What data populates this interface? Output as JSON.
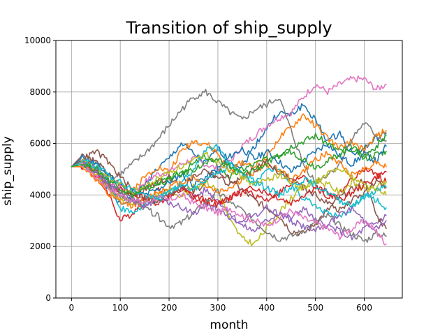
{
  "chart_data": {
    "type": "line",
    "title": "Transition of ship_supply",
    "xlabel": "month",
    "ylabel": "ship_supply",
    "xlim": [
      -32,
      678
    ],
    "ylim": [
      0,
      10000
    ],
    "x_ticks": [
      0,
      100,
      200,
      300,
      400,
      500,
      600
    ],
    "y_ticks": [
      0,
      2000,
      4000,
      6000,
      8000,
      10000
    ],
    "grid": true,
    "legend": "none",
    "series": [
      {
        "color": "#1f77b4",
        "x": [
          0,
          25,
          50,
          75,
          100,
          125,
          150,
          175,
          200,
          225,
          250,
          275,
          300,
          325,
          350,
          375,
          400,
          425,
          450,
          475,
          500,
          525,
          550,
          575,
          600,
          625,
          645
        ],
        "values": [
          5100,
          5300,
          4900,
          4300,
          3600,
          3900,
          4400,
          5000,
          5400,
          6000,
          5600,
          5200,
          5800,
          5300,
          5100,
          5900,
          6600,
          7200,
          7100,
          7500,
          6900,
          6100,
          6400,
          5600,
          5800,
          6200,
          6400
        ]
      },
      {
        "color": "#ff7f0e",
        "x": [
          0,
          25,
          50,
          75,
          100,
          125,
          150,
          175,
          200,
          225,
          250,
          275,
          300,
          325,
          350,
          375,
          400,
          425,
          450,
          475,
          500,
          525,
          550,
          575,
          600,
          625,
          645
        ],
        "values": [
          5100,
          5200,
          4700,
          4200,
          3900,
          4200,
          4700,
          5100,
          4900,
          5700,
          6100,
          6000,
          5600,
          4900,
          5300,
          5100,
          5500,
          6200,
          6600,
          7100,
          6700,
          6200,
          5800,
          6100,
          5700,
          6300,
          6500
        ]
      },
      {
        "color": "#2ca02c",
        "x": [
          0,
          25,
          50,
          75,
          100,
          125,
          150,
          175,
          200,
          225,
          250,
          275,
          300,
          325,
          350,
          375,
          400,
          425,
          450,
          475,
          500,
          525,
          550,
          575,
          600,
          625,
          645
        ],
        "values": [
          5100,
          5200,
          4800,
          4400,
          4100,
          4000,
          4300,
          4500,
          4600,
          4900,
          5200,
          5500,
          5100,
          4700,
          5000,
          5200,
          5400,
          5600,
          5900,
          6100,
          6300,
          6000,
          5700,
          5900,
          5400,
          5600,
          5700
        ]
      },
      {
        "color": "#d62728",
        "x": [
          0,
          25,
          50,
          75,
          100,
          125,
          150,
          175,
          200,
          225,
          250,
          275,
          300,
          325,
          350,
          375,
          400,
          425,
          450,
          475,
          500,
          525,
          550,
          575,
          600,
          625,
          645
        ],
        "values": [
          5100,
          5100,
          4700,
          4100,
          3000,
          3300,
          3800,
          4200,
          4000,
          4300,
          3900,
          3700,
          3600,
          3900,
          4200,
          4000,
          3800,
          4100,
          4400,
          4800,
          4300,
          3900,
          4100,
          4600,
          5000,
          4800,
          4500
        ]
      },
      {
        "color": "#9467bd",
        "x": [
          0,
          25,
          50,
          75,
          100,
          125,
          150,
          175,
          200,
          225,
          250,
          275,
          300,
          325,
          350,
          375,
          400,
          425,
          450,
          475,
          500,
          525,
          550,
          575,
          600,
          625,
          645
        ],
        "values": [
          5100,
          5300,
          5000,
          4600,
          4000,
          3700,
          3600,
          3900,
          4100,
          4300,
          3900,
          4200,
          3800,
          3300,
          2800,
          2600,
          3000,
          3300,
          3100,
          3500,
          3000,
          2800,
          2600,
          2300,
          2700,
          2900,
          3200
        ]
      },
      {
        "color": "#8c564b",
        "x": [
          0,
          25,
          50,
          75,
          100,
          125,
          150,
          175,
          200,
          225,
          250,
          275,
          300,
          325,
          350,
          375,
          400,
          425,
          450,
          475,
          500,
          525,
          550,
          575,
          600,
          625,
          645
        ],
        "values": [
          5100,
          5600,
          5300,
          4800,
          4400,
          4000,
          4200,
          4500,
          4700,
          4400,
          4100,
          4500,
          4900,
          4600,
          4200,
          3800,
          3500,
          3200,
          2600,
          2500,
          2900,
          3400,
          3900,
          4200,
          4600,
          3200,
          2700
        ]
      },
      {
        "color": "#e377c2",
        "x": [
          0,
          25,
          50,
          75,
          100,
          125,
          150,
          175,
          200,
          225,
          250,
          275,
          300,
          325,
          350,
          375,
          400,
          425,
          450,
          475,
          500,
          525,
          550,
          575,
          600,
          625,
          645
        ],
        "values": [
          5100,
          5300,
          4800,
          4500,
          4300,
          4100,
          4500,
          4800,
          4900,
          5200,
          5400,
          5200,
          5000,
          5300,
          5900,
          6300,
          6700,
          7000,
          7200,
          7800,
          8300,
          8000,
          8300,
          8500,
          8500,
          8100,
          8300
        ]
      },
      {
        "color": "#7f7f7f",
        "x": [
          0,
          25,
          50,
          75,
          100,
          125,
          150,
          175,
          200,
          225,
          250,
          275,
          300,
          325,
          350,
          375,
          400,
          425,
          450,
          475,
          500,
          525,
          550,
          575,
          600,
          625,
          645
        ],
        "values": [
          5100,
          5300,
          5200,
          4500,
          4800,
          5200,
          5600,
          6100,
          6700,
          7300,
          7800,
          8000,
          7600,
          7200,
          6900,
          7300,
          7500,
          7800,
          6500,
          5200,
          4500,
          4800,
          5200,
          6200,
          6800,
          6300,
          6100
        ]
      },
      {
        "color": "#bcbd22",
        "x": [
          0,
          25,
          50,
          75,
          100,
          125,
          150,
          175,
          200,
          225,
          250,
          275,
          300,
          325,
          350,
          375,
          400,
          425,
          450,
          475,
          500,
          525,
          550,
          575,
          600,
          625,
          645
        ],
        "values": [
          5100,
          5200,
          4800,
          4200,
          3900,
          3700,
          3800,
          4000,
          4200,
          4000,
          4300,
          4500,
          4200,
          3000,
          2300,
          2100,
          2700,
          3300,
          3900,
          4300,
          4600,
          4400,
          4100,
          4500,
          4200,
          4300,
          4500
        ]
      },
      {
        "color": "#17becf",
        "x": [
          0,
          25,
          50,
          75,
          100,
          125,
          150,
          175,
          200,
          225,
          250,
          275,
          300,
          325,
          350,
          375,
          400,
          425,
          450,
          475,
          500,
          525,
          550,
          575,
          600,
          625,
          645
        ],
        "values": [
          5100,
          5400,
          5100,
          4600,
          3500,
          3300,
          3600,
          3800,
          4100,
          4500,
          5000,
          5800,
          5900,
          5200,
          4800,
          4600,
          4900,
          5100,
          4400,
          3900,
          3600,
          3300,
          3100,
          3500,
          4000,
          3800,
          3500
        ]
      },
      {
        "color": "#1f77b4",
        "x": [
          0,
          25,
          50,
          75,
          100,
          125,
          150,
          175,
          200,
          225,
          250,
          275,
          300,
          325,
          350,
          375,
          400,
          425,
          450,
          475,
          500,
          525,
          550,
          575,
          600,
          625,
          645
        ],
        "values": [
          5100,
          5500,
          5200,
          4800,
          4400,
          4100,
          4000,
          4200,
          4500,
          4800,
          4400,
          4700,
          5000,
          5500,
          5800,
          5400,
          5700,
          5300,
          4900,
          5300,
          5700,
          6000,
          5500,
          5200,
          5600,
          5300,
          5900
        ]
      },
      {
        "color": "#ff7f0e",
        "x": [
          0,
          25,
          50,
          75,
          100,
          125,
          150,
          175,
          200,
          225,
          250,
          275,
          300,
          325,
          350,
          375,
          400,
          425,
          450,
          475,
          500,
          525,
          550,
          575,
          600,
          625,
          645
        ],
        "values": [
          5100,
          5100,
          4600,
          4000,
          3700,
          3600,
          3800,
          4100,
          4300,
          4500,
          4700,
          4400,
          4100,
          4300,
          4600,
          4900,
          5200,
          5000,
          4600,
          4900,
          5400,
          5600,
          5200,
          4800,
          5000,
          5300,
          5100
        ]
      },
      {
        "color": "#d62728",
        "x": [
          0,
          25,
          50,
          75,
          100,
          125,
          150,
          175,
          200,
          225,
          250,
          275,
          300,
          325,
          350,
          375,
          400,
          425,
          450,
          475,
          500,
          525,
          550,
          575,
          600,
          625,
          645
        ],
        "values": [
          5100,
          5300,
          4900,
          4400,
          4200,
          4000,
          3900,
          3700,
          3900,
          4200,
          4000,
          3800,
          3700,
          3900,
          4100,
          4300,
          4100,
          3900,
          3700,
          4000,
          4300,
          4100,
          3800,
          4100,
          4400,
          4700,
          4900
        ]
      },
      {
        "color": "#7f7f7f",
        "x": [
          0,
          25,
          50,
          75,
          100,
          125,
          150,
          175,
          200,
          225,
          250,
          275,
          300,
          325,
          350,
          375,
          400,
          425,
          450,
          475,
          500,
          525,
          550,
          575,
          600,
          625,
          645
        ],
        "values": [
          5100,
          5200,
          4900,
          4300,
          4000,
          3800,
          3500,
          3200,
          2800,
          2900,
          3300,
          3700,
          4100,
          3700,
          3400,
          3000,
          2600,
          2300,
          2400,
          2600,
          2900,
          3200,
          2800,
          2500,
          2200,
          2500,
          2400
        ]
      },
      {
        "color": "#9467bd",
        "x": [
          0,
          25,
          50,
          75,
          100,
          125,
          150,
          175,
          200,
          225,
          250,
          275,
          300,
          325,
          350,
          375,
          400,
          425,
          450,
          475,
          500,
          525,
          550,
          575,
          600,
          625,
          645
        ],
        "values": [
          5100,
          5200,
          4900,
          4500,
          4100,
          3800,
          3600,
          3800,
          3700,
          3500,
          3300,
          3600,
          3400,
          3100,
          2900,
          3200,
          3500,
          3300,
          3000,
          2800,
          2600,
          2900,
          3200,
          3500,
          3000,
          2700,
          3000
        ]
      },
      {
        "color": "#8c564b",
        "x": [
          0,
          25,
          50,
          75,
          100,
          125,
          150,
          175,
          200,
          225,
          250,
          275,
          300,
          325,
          350,
          375,
          400,
          425,
          450,
          475,
          500,
          525,
          550,
          575,
          600,
          625,
          645
        ],
        "values": [
          5100,
          5400,
          5700,
          5300,
          4700,
          4200,
          3900,
          3700,
          4000,
          4300,
          4700,
          5000,
          4700,
          4400,
          4700,
          5000,
          5300,
          4900,
          4600,
          4300,
          4000,
          3700,
          3400,
          3800,
          4100,
          4500,
          4300
        ]
      },
      {
        "color": "#e377c2",
        "x": [
          0,
          25,
          50,
          75,
          100,
          125,
          150,
          175,
          200,
          225,
          250,
          275,
          300,
          325,
          350,
          375,
          400,
          425,
          450,
          475,
          500,
          525,
          550,
          575,
          600,
          625,
          645
        ],
        "values": [
          5100,
          5200,
          4700,
          4300,
          4000,
          3800,
          3700,
          3900,
          3800,
          4000,
          3700,
          3500,
          3300,
          3500,
          3200,
          3000,
          2800,
          3100,
          3400,
          3100,
          2900,
          2700,
          2400,
          2700,
          3000,
          2600,
          2100
        ]
      },
      {
        "color": "#bcbd22",
        "x": [
          0,
          25,
          50,
          75,
          100,
          125,
          150,
          175,
          200,
          225,
          250,
          275,
          300,
          325,
          350,
          375,
          400,
          425,
          450,
          475,
          500,
          525,
          550,
          575,
          600,
          625,
          645
        ],
        "values": [
          5100,
          5300,
          5000,
          4700,
          4400,
          4100,
          4300,
          4600,
          4900,
          5100,
          5300,
          5600,
          5300,
          5000,
          4700,
          4400,
          4600,
          4800,
          4500,
          4200,
          4500,
          4800,
          5100,
          4700,
          4400,
          4200,
          4000
        ]
      },
      {
        "color": "#17becf",
        "x": [
          0,
          25,
          50,
          75,
          100,
          125,
          150,
          175,
          200,
          225,
          250,
          275,
          300,
          325,
          350,
          375,
          400,
          425,
          450,
          475,
          500,
          525,
          550,
          575,
          600,
          625,
          645
        ],
        "values": [
          5100,
          5300,
          5100,
          4800,
          4500,
          4200,
          4000,
          3800,
          4100,
          4400,
          4200,
          4600,
          4900,
          5100,
          4800,
          4500,
          4300,
          4000,
          4300,
          4600,
          4400,
          4100,
          3800,
          3600,
          3900,
          4200,
          4300
        ]
      },
      {
        "color": "#2ca02c",
        "x": [
          0,
          25,
          50,
          75,
          100,
          125,
          150,
          175,
          200,
          225,
          250,
          275,
          300,
          325,
          350,
          375,
          400,
          425,
          450,
          475,
          500,
          525,
          550,
          575,
          600,
          625,
          645
        ],
        "values": [
          5100,
          5200,
          5000,
          4600,
          4300,
          4000,
          4200,
          4400,
          4600,
          4800,
          5000,
          5200,
          5400,
          5100,
          4800,
          5000,
          5200,
          5500,
          5700,
          5400,
          5100,
          5300,
          5600,
          5800,
          5500,
          5900,
          6300
        ]
      }
    ]
  }
}
